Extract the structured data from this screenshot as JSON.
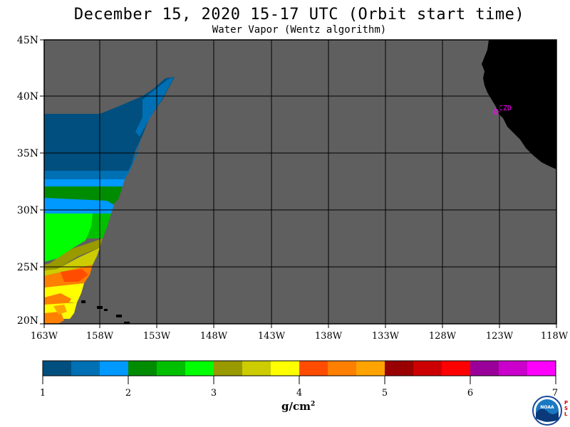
{
  "header": {
    "title": "December 15, 2020  15-17 UTC  (Orbit start time)",
    "subtitle": "Water Vapor (Wentz algorithm)"
  },
  "map": {
    "lat_labels": [
      "45N",
      "40N",
      "35N",
      "30N",
      "25N",
      "20N"
    ],
    "lon_labels": [
      "163W",
      "158W",
      "153W",
      "148W",
      "143W",
      "138W",
      "133W",
      "128W",
      "123W",
      "118W"
    ],
    "place_label": "CZD",
    "colors": {
      "ocean": "#5f5f5f",
      "land": "#000000",
      "grid": "#000000",
      "marker": "#ff00ff"
    }
  },
  "colorbar": {
    "tick_labels": [
      "1",
      "2",
      "3",
      "4",
      "5",
      "6",
      "7"
    ],
    "units_base": "g/cm",
    "units_exp": "2",
    "colors": [
      "#004f7f",
      "#0070b4",
      "#0099ff",
      "#008c00",
      "#00c000",
      "#00ff00",
      "#999900",
      "#cccc00",
      "#ffff00",
      "#ff4c00",
      "#ff7f00",
      "#ffa300",
      "#990000",
      "#cc0000",
      "#ff0000",
      "#990099",
      "#cc00cc",
      "#ff00ff"
    ]
  },
  "logos": {
    "noaa_text": "NOAA",
    "psl_text": "PSL"
  }
}
